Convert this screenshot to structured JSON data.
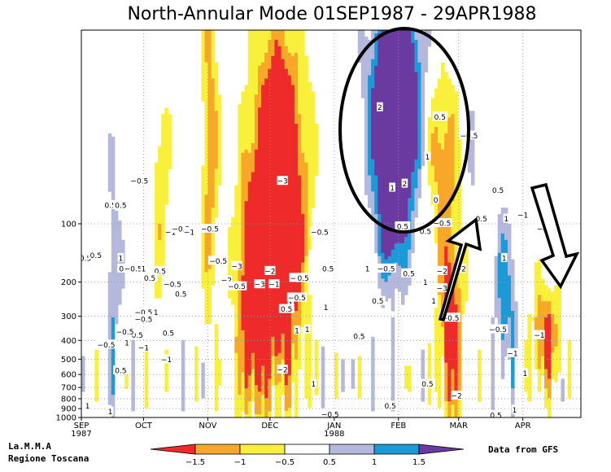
{
  "chart_data": {
    "type": "heatmap",
    "title": "North-Annular Mode 01SEP1987 - 29APR1988",
    "x_ticks": [
      {
        "label": "SEP",
        "sub": "1987",
        "day": 0
      },
      {
        "label": "OCT",
        "sub": "",
        "day": 30
      },
      {
        "label": "NOV",
        "sub": "",
        "day": 61
      },
      {
        "label": "DEC",
        "sub": "",
        "day": 91
      },
      {
        "label": "JAN",
        "sub": "1988",
        "day": 122
      },
      {
        "label": "FEB",
        "sub": "",
        "day": 153
      },
      {
        "label": "MAR",
        "sub": "",
        "day": 182
      },
      {
        "label": "APR",
        "sub": "",
        "day": 213
      }
    ],
    "x_range": [
      0,
      241
    ],
    "y_axis": {
      "scale": "log",
      "range_hpa": [
        1000,
        10
      ],
      "ticks": [
        "100",
        "200",
        "300",
        "400",
        "500",
        "600",
        "700",
        "800",
        "900",
        "1000"
      ],
      "tick_values": [
        100,
        200,
        300,
        400,
        500,
        600,
        700,
        800,
        900,
        1000
      ]
    },
    "legend": {
      "placement": "bottom-center",
      "labels": [
        "−1.5",
        "−1",
        "−0.5",
        "0.5",
        "1",
        "1.5"
      ],
      "colors": [
        "#ee2a2a",
        "#f8a828",
        "#f8f03a",
        "#ffffff",
        "#b4b8dc",
        "#1c9ad8",
        "#6a3aa0"
      ]
    },
    "levels": [
      -1.5,
      -1,
      -0.5,
      0.5,
      1,
      1.5
    ],
    "contour_labels": [
      {
        "t": "0.5",
        "day": 2,
        "p": 150
      },
      {
        "t": "0.5",
        "day": 7,
        "p": 145
      },
      {
        "t": "0.5",
        "day": 14,
        "p": 80
      },
      {
        "t": "0.5",
        "day": 19,
        "p": 80
      },
      {
        "t": "1",
        "day": 19,
        "p": 150
      },
      {
        "t": "0.5",
        "day": 21,
        "p": 170
      },
      {
        "t": "−0.5",
        "day": 25,
        "p": 170
      },
      {
        "t": "1",
        "day": 30,
        "p": 170
      },
      {
        "t": "0.5",
        "day": 38,
        "p": 175
      },
      {
        "t": "0.5",
        "day": 33,
        "p": 190
      },
      {
        "t": "−0.5",
        "day": 28,
        "p": 60
      },
      {
        "t": "−1",
        "day": 43,
        "p": 110
      },
      {
        "t": "−0.5",
        "day": 48,
        "p": 106
      },
      {
        "t": "−0.5",
        "day": 44,
        "p": 205
      },
      {
        "t": "0.5",
        "day": 48,
        "p": 230
      },
      {
        "t": "−0.5",
        "day": 30,
        "p": 285
      },
      {
        "t": "−0.5",
        "day": 30,
        "p": 310
      },
      {
        "t": "1",
        "day": 36,
        "p": 285
      },
      {
        "t": "0.5",
        "day": 27,
        "p": 375
      },
      {
        "t": "−0.5",
        "day": 21,
        "p": 360
      },
      {
        "t": "−0.5",
        "day": 12,
        "p": 420
      },
      {
        "t": "1",
        "day": 22,
        "p": 410
      },
      {
        "t": "−1",
        "day": 30,
        "p": 435
      },
      {
        "t": "0.5",
        "day": 42,
        "p": 365
      },
      {
        "t": "0.5",
        "day": 19,
        "p": 570
      },
      {
        "t": "1",
        "day": 3,
        "p": 870
      },
      {
        "t": "1",
        "day": 14,
        "p": 930
      },
      {
        "t": "−1",
        "day": 41,
        "p": 500
      },
      {
        "t": "−1",
        "day": 52,
        "p": 110
      },
      {
        "t": "−0.5",
        "day": 62,
        "p": 106
      },
      {
        "t": "−0.5",
        "day": 66,
        "p": 155
      },
      {
        "t": "−2",
        "day": 70,
        "p": 195
      },
      {
        "t": "−3",
        "day": 75,
        "p": 165
      },
      {
        "t": "−0.5",
        "day": 75,
        "p": 210
      },
      {
        "t": "−3",
        "day": 86,
        "p": 205
      },
      {
        "t": "−2",
        "day": 91,
        "p": 175
      },
      {
        "t": "−3",
        "day": 97,
        "p": 60
      },
      {
        "t": "−1",
        "day": 93,
        "p": 205
      },
      {
        "t": "−0.5",
        "day": 105,
        "p": 190
      },
      {
        "t": "−0.5",
        "day": 104,
        "p": 240
      },
      {
        "t": "1",
        "day": 101,
        "p": 260
      },
      {
        "t": "0.5",
        "day": 99,
        "p": 275
      },
      {
        "t": "0.5",
        "day": 119,
        "p": 170
      },
      {
        "t": "−0.5",
        "day": 115,
        "p": 110
      },
      {
        "t": "−2",
        "day": 97,
        "p": 565
      },
      {
        "t": "1",
        "day": 104,
        "p": 355
      },
      {
        "t": "1",
        "day": 109,
        "p": 350
      },
      {
        "t": "1",
        "day": 118,
        "p": 270
      },
      {
        "t": "1",
        "day": 112,
        "p": 670
      },
      {
        "t": "0.5",
        "day": 107,
        "p": 190
      },
      {
        "t": "−0.5",
        "day": 120,
        "p": 960
      },
      {
        "t": "1",
        "day": 138,
        "p": 170
      },
      {
        "t": "−0.5",
        "day": 147,
        "p": 170
      },
      {
        "t": "0.5",
        "day": 143,
        "p": 250
      },
      {
        "t": "0.5",
        "day": 134,
        "p": 380
      },
      {
        "t": "0.5",
        "day": 158,
        "p": 180
      },
      {
        "t": "0.5",
        "day": 167,
        "p": 670
      },
      {
        "t": "0.5",
        "day": 149,
        "p": 870
      },
      {
        "t": "0.5",
        "day": 155,
        "p": 103
      },
      {
        "t": "2",
        "day": 144,
        "p": 25
      },
      {
        "t": "1",
        "day": 150,
        "p": 65
      },
      {
        "t": "2",
        "day": 156,
        "p": 62
      },
      {
        "t": "1",
        "day": 167,
        "p": 45
      },
      {
        "t": "0.5",
        "day": 173,
        "p": 28
      },
      {
        "t": "−0.5",
        "day": 187,
        "p": 35
      },
      {
        "t": "0",
        "day": 171,
        "p": 75
      },
      {
        "t": "−0.5",
        "day": 174,
        "p": 99
      },
      {
        "t": "0.5",
        "day": 166,
        "p": 109
      },
      {
        "t": "−2",
        "day": 174,
        "p": 175
      },
      {
        "t": "−2",
        "day": 183,
        "p": 170
      },
      {
        "t": "−3",
        "day": 174,
        "p": 215
      },
      {
        "t": "1",
        "day": 166,
        "p": 200
      },
      {
        "t": "1",
        "day": 170,
        "p": 250
      },
      {
        "t": "−0.5",
        "day": 178,
        "p": 305
      },
      {
        "t": "−2",
        "day": 181,
        "p": 770
      },
      {
        "t": "0.5",
        "day": 193,
        "p": 94
      },
      {
        "t": "0.5",
        "day": 201,
        "p": 67
      },
      {
        "t": "1",
        "day": 205,
        "p": 94
      },
      {
        "t": "1",
        "day": 204,
        "p": 150
      },
      {
        "t": "−1",
        "day": 213,
        "p": 90
      },
      {
        "t": "−0.5",
        "day": 224,
        "p": 106
      },
      {
        "t": "−0.5",
        "day": 201,
        "p": 350
      },
      {
        "t": "−1",
        "day": 208,
        "p": 465
      },
      {
        "t": "−1",
        "day": 221,
        "p": 375
      },
      {
        "t": "1",
        "day": 214,
        "p": 590
      },
      {
        "t": "0.5",
        "day": 200,
        "p": 970
      },
      {
        "t": "1",
        "day": 209,
        "p": 910
      }
    ],
    "annotations": [
      "ellipse around FEB upper-level positive anomaly",
      "up arrow at MAR",
      "down arrow at APR"
    ]
  },
  "footer": {
    "left_line1": "La.M.M.A",
    "left_line2": "Regione Toscana",
    "right": "Data from GFS"
  }
}
